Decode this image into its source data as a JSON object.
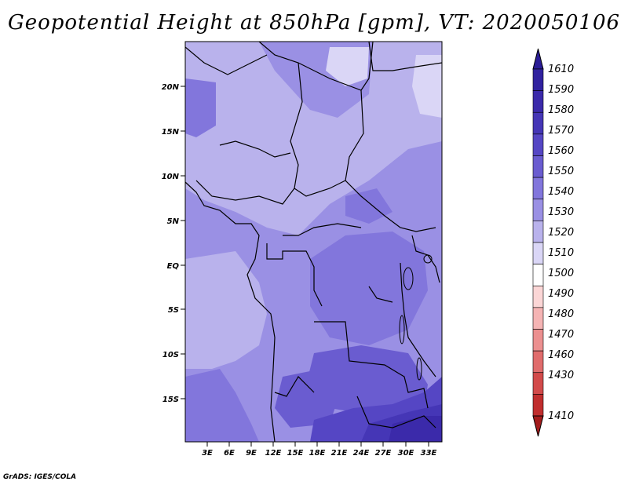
{
  "title": "Geopotential Height at 850hPa [gpm], VT: 2020050106",
  "credit": "GrADS: IGES/COLA",
  "map": {
    "lat_labels": [
      "20N",
      "15N",
      "10N",
      "5N",
      "EQ",
      "5S",
      "10S",
      "15S"
    ],
    "lon_labels": [
      "3E",
      "6E",
      "9E",
      "12E",
      "15E",
      "18E",
      "21E",
      "24E",
      "27E",
      "30E",
      "33E"
    ]
  },
  "colorbar": {
    "levels": [
      "1610",
      "1590",
      "1580",
      "1570",
      "1560",
      "1550",
      "1540",
      "1530",
      "1520",
      "1510",
      "1500",
      "1490",
      "1480",
      "1470",
      "1460",
      "1430",
      "1410"
    ],
    "colors": [
      "#2a1c96",
      "#31229f",
      "#3b2aaa",
      "#4536b6",
      "#5546c4",
      "#6a5cd0",
      "#8276dc",
      "#9a90e4",
      "#b9b2ec",
      "#dad6f6",
      "#ffffff",
      "#fbd6d6",
      "#f5b4b4",
      "#ec9090",
      "#e06c6c",
      "#d24a4a",
      "#c02e2e",
      "#a41c1c"
    ]
  }
}
